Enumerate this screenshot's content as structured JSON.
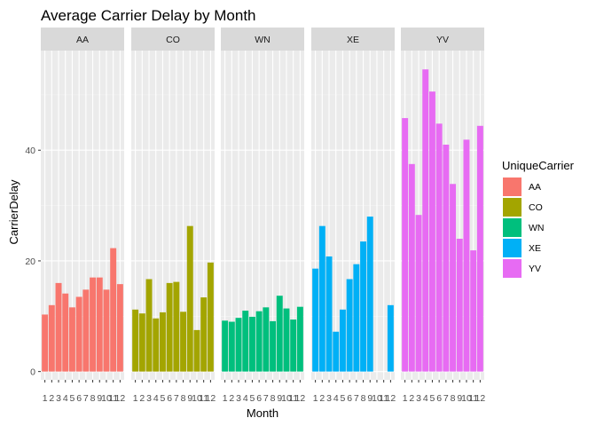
{
  "chart_data": {
    "type": "bar",
    "title": "Average Carrier Delay by Month",
    "xlabel": "Month",
    "ylabel": "CarrierDelay",
    "facet_by": "UniqueCarrier",
    "x_ticks": [
      "1",
      "2",
      "3",
      "4",
      "5",
      "6",
      "7",
      "8",
      "9",
      "10",
      "11",
      "12"
    ],
    "y_ticks": [
      0,
      20,
      40
    ],
    "ylim": [
      -1.5,
      58
    ],
    "grid": true,
    "legend": {
      "title": "UniqueCarrier",
      "position": "right"
    },
    "series": [
      {
        "name": "AA",
        "color": "#F8766D",
        "values": [
          10.3,
          12.0,
          16.0,
          14.1,
          11.6,
          13.5,
          14.8,
          17.0,
          17.0,
          14.8,
          22.3,
          15.8
        ]
      },
      {
        "name": "CO",
        "color": "#A3A500",
        "values": [
          11.2,
          10.5,
          16.7,
          9.6,
          10.7,
          16.0,
          16.2,
          10.8,
          26.3,
          7.5,
          13.4,
          19.7
        ]
      },
      {
        "name": "WN",
        "color": "#00BF7D",
        "values": [
          9.2,
          9.0,
          9.7,
          11.0,
          9.9,
          10.9,
          11.6,
          9.1,
          13.7,
          11.4,
          9.4,
          11.7
        ]
      },
      {
        "name": "XE",
        "color": "#00B0F6",
        "values": [
          18.6,
          26.3,
          20.8,
          7.2,
          11.2,
          16.7,
          19.4,
          23.5,
          28.0,
          null,
          null,
          12.0
        ]
      },
      {
        "name": "YV",
        "color": "#E76BF3",
        "values": [
          45.8,
          37.5,
          28.3,
          54.6,
          50.6,
          44.8,
          41.0,
          33.9,
          24.0,
          41.9,
          21.9,
          44.4
        ]
      }
    ]
  }
}
